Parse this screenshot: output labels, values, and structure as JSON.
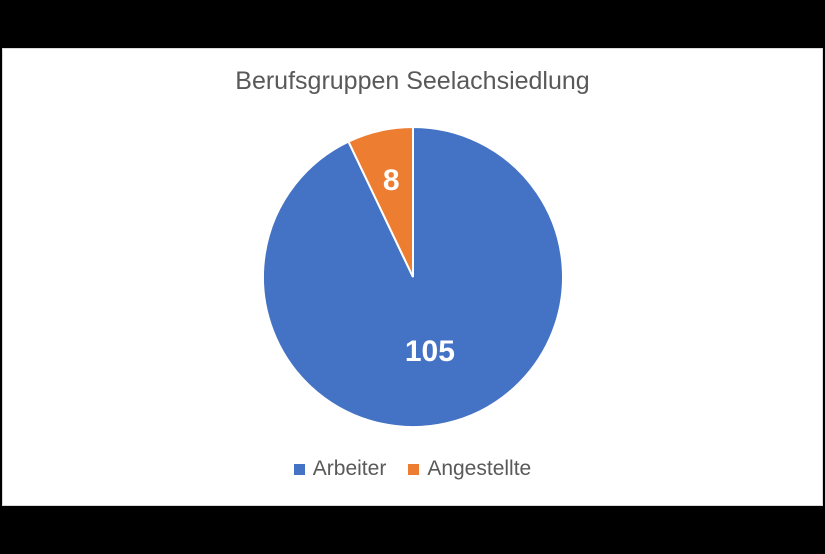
{
  "chart_data": {
    "type": "pie",
    "title": "Berufsgruppen Seelachsiedlung",
    "categories": [
      "Arbeiter",
      "Angestellte"
    ],
    "values": [
      105,
      8
    ],
    "colors": [
      "#4472C4",
      "#ED7D31"
    ],
    "data_labels": [
      "105",
      "8"
    ],
    "legend_position": "bottom"
  }
}
